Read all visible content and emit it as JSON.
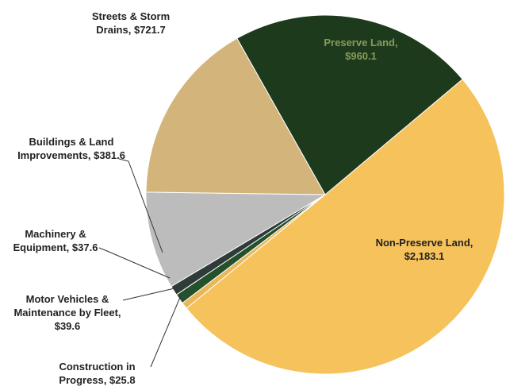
{
  "chart_data": {
    "type": "pie",
    "categories": [
      "Non-Preserve Land,",
      "Construction in Progress,",
      "Motor Vehicles & Maintenance by Fleet,",
      "Machinery & Equipment,",
      "Buildings & Land Improvements,",
      "Streets & Storm Drains,",
      "Preserve Land,"
    ],
    "values": [
      2183.1,
      25.8,
      39.6,
      37.6,
      381.6,
      721.7,
      960.1
    ],
    "value_labels": [
      "$2,183.1",
      "$25.8",
      "$39.6",
      "$37.6",
      "$381.6",
      "$721.7",
      "$960.1"
    ],
    "colors": [
      "#f6c25c",
      "#e9b75a",
      "#24512c",
      "#2f3b38",
      "#bcbcbc",
      "#d3b47a",
      "#1e3a1c"
    ]
  }
}
